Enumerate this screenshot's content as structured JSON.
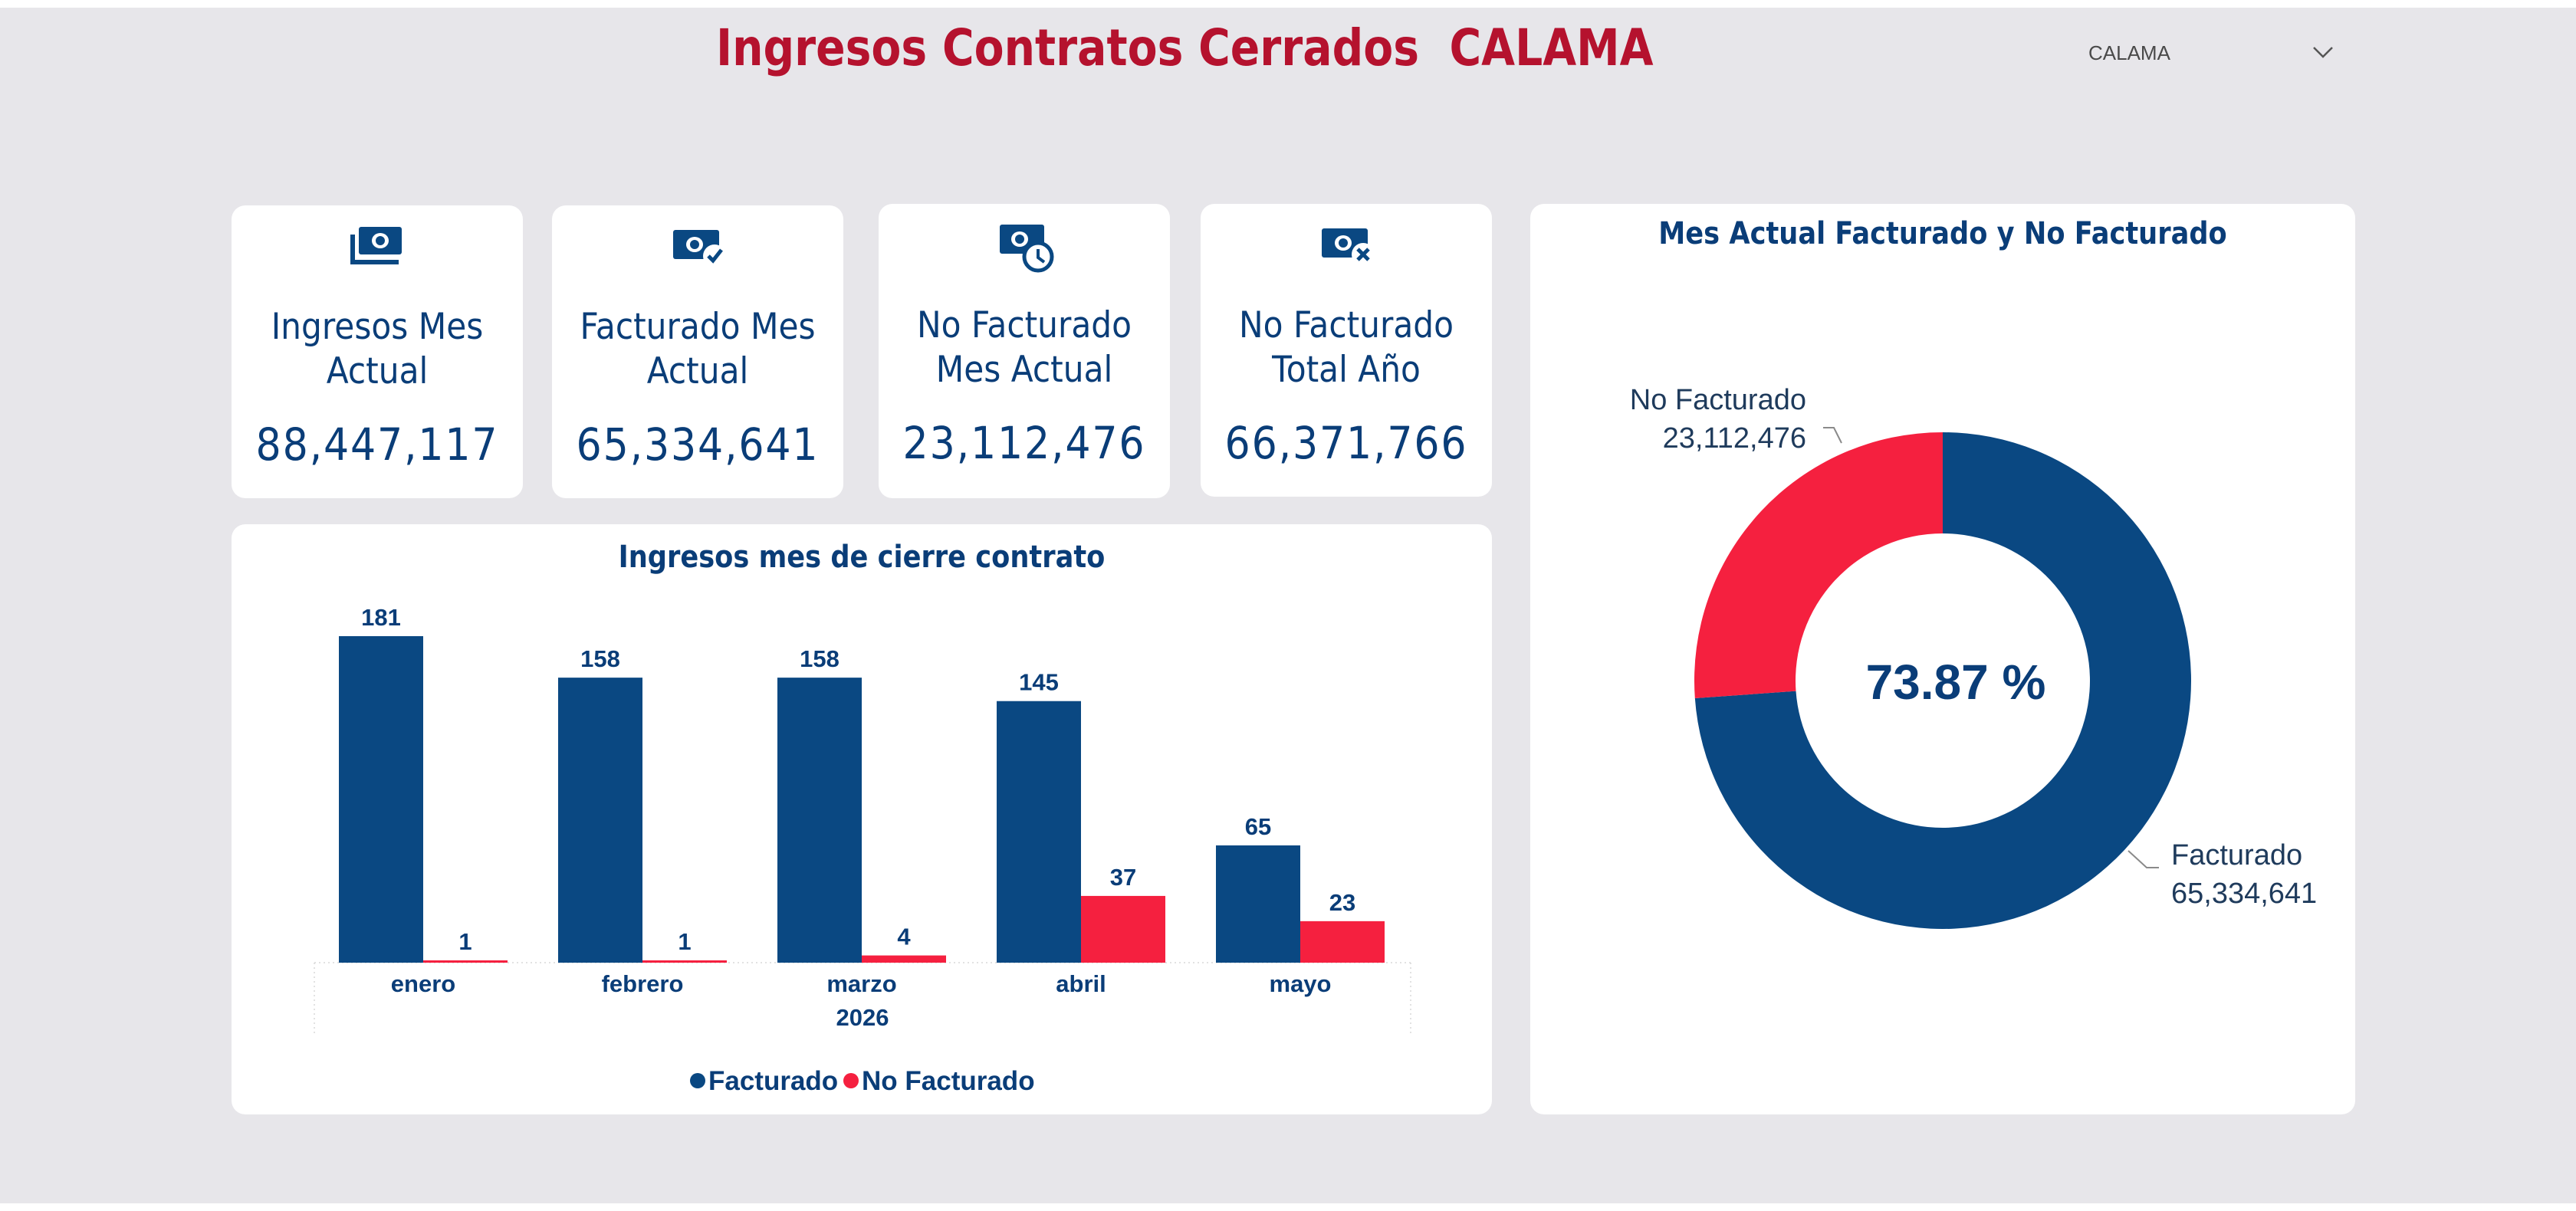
{
  "header": {
    "title": "Ingresos Contratos Cerrados  CALAMA",
    "slicer_value": "CALAMA"
  },
  "kpis": [
    {
      "label_line1": "Ingresos Mes",
      "label_line2": "Actual",
      "value": "88,447,117",
      "icon": "money-stack-icon"
    },
    {
      "label_line1": "Facturado Mes",
      "label_line2": "Actual",
      "value": "65,334,641",
      "icon": "money-check-icon"
    },
    {
      "label_line1": "No Facturado",
      "label_line2": "Mes Actual",
      "value": "23,112,476",
      "icon": "money-clock-icon"
    },
    {
      "label_line1": "No Facturado",
      "label_line2": "Total Año",
      "value": "66,371,766",
      "icon": "money-x-icon"
    }
  ],
  "colors": {
    "title_red": "#b5122e",
    "navy": "#0a4882",
    "red": "#f5203f",
    "background": "#e7e6ea"
  },
  "bar_chart": {
    "title": "Ingresos mes de cierre contrato",
    "year_label": "2026",
    "legend": [
      "Facturado",
      "No Facturado"
    ]
  },
  "donut_chart": {
    "title": "Mes Actual Facturado y No Facturado",
    "center_label": "73.87 %",
    "slices": [
      {
        "name": "Facturado",
        "label_value": "65,334,641"
      },
      {
        "name": "No Facturado",
        "label_value": "23,112,476"
      }
    ]
  },
  "chart_data": [
    {
      "type": "bar",
      "title": "Ingresos mes de cierre contrato",
      "categories": [
        "enero",
        "febrero",
        "marzo",
        "abril",
        "mayo"
      ],
      "x_group_label": "2026",
      "series": [
        {
          "name": "Facturado",
          "color": "#0a4882",
          "values": [
            181,
            158,
            158,
            145,
            65
          ]
        },
        {
          "name": "No Facturado",
          "color": "#f5203f",
          "values": [
            1,
            1,
            4,
            37,
            23
          ]
        }
      ],
      "ylim": [
        0,
        181
      ],
      "grid": false,
      "legend": "bottom-center"
    },
    {
      "type": "pie",
      "title": "Mes Actual Facturado y No Facturado",
      "donut": true,
      "center_text": "73.87 %",
      "slices": [
        {
          "name": "Facturado",
          "value": 65334641,
          "color": "#0a4882"
        },
        {
          "name": "No Facturado",
          "value": 23112476,
          "color": "#f5203f"
        }
      ]
    }
  ]
}
